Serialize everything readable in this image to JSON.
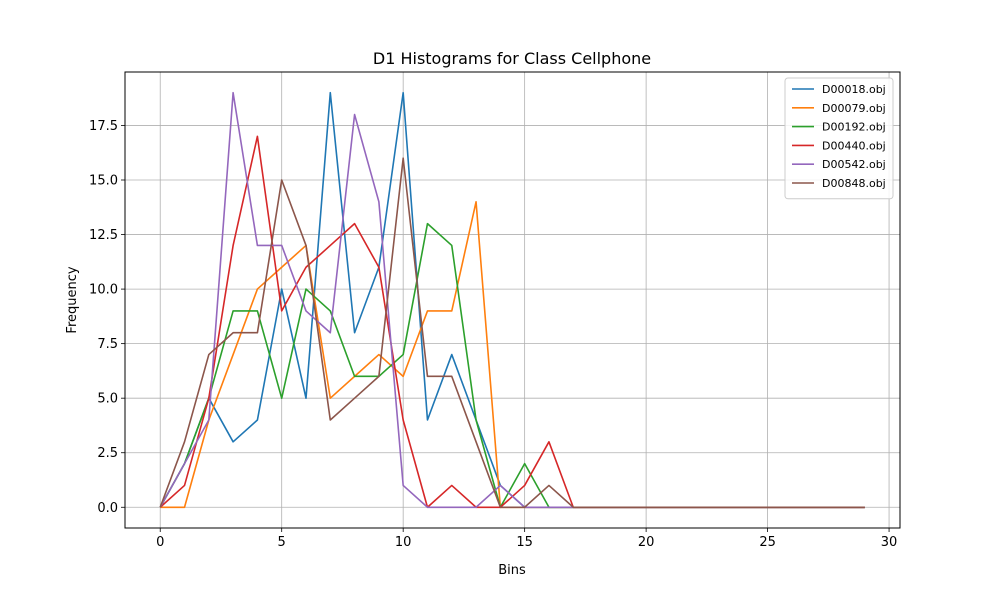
{
  "chart_data": {
    "type": "line",
    "title": "D1 Histograms for Class Cellphone",
    "xlabel": "Bins",
    "ylabel": "Frequency",
    "xlim": [
      -1.45,
      30.45
    ],
    "ylim": [
      -0.95,
      19.95
    ],
    "xticks": [
      0,
      5,
      10,
      15,
      20,
      25,
      30
    ],
    "yticks": [
      0.0,
      2.5,
      5.0,
      7.5,
      10.0,
      12.5,
      15.0,
      17.5
    ],
    "ytick_labels": [
      "0.0",
      "2.5",
      "5.0",
      "7.5",
      "10.0",
      "12.5",
      "15.0",
      "17.5"
    ],
    "grid": true,
    "legend_position": "top-right",
    "x": [
      0,
      1,
      2,
      3,
      4,
      5,
      6,
      7,
      8,
      9,
      10,
      11,
      12,
      13,
      14,
      15,
      16,
      17,
      18,
      19,
      20,
      21,
      22,
      23,
      24,
      25,
      26,
      27,
      28,
      29
    ],
    "series": [
      {
        "name": "D00018.obj",
        "color": "#1f77b4",
        "values": [
          0,
          2,
          5,
          3,
          4,
          10,
          5,
          19,
          8,
          11,
          19,
          4,
          7,
          4,
          1,
          0,
          0,
          0,
          0,
          0,
          0,
          0,
          0,
          0,
          0,
          0,
          0,
          0,
          0,
          0
        ]
      },
      {
        "name": "D00079.obj",
        "color": "#ff7f0e",
        "values": [
          0,
          0,
          4,
          7,
          10,
          11,
          12,
          5,
          6,
          7,
          6,
          9,
          9,
          14,
          0,
          0,
          0,
          0,
          0,
          0,
          0,
          0,
          0,
          0,
          0,
          0,
          0,
          0,
          0,
          0
        ]
      },
      {
        "name": "D00192.obj",
        "color": "#2ca02c",
        "values": [
          0,
          2,
          5,
          9,
          9,
          5,
          10,
          9,
          6,
          6,
          7,
          13,
          12,
          4,
          0,
          2,
          0,
          0,
          0,
          0,
          0,
          0,
          0,
          0,
          0,
          0,
          0,
          0,
          0,
          0
        ]
      },
      {
        "name": "D00440.obj",
        "color": "#d62728",
        "values": [
          0,
          1,
          5,
          12,
          17,
          9,
          11,
          12,
          13,
          11,
          4,
          0,
          1,
          0,
          0,
          1,
          3,
          0,
          0,
          0,
          0,
          0,
          0,
          0,
          0,
          0,
          0,
          0,
          0,
          0
        ]
      },
      {
        "name": "D00542.obj",
        "color": "#9467bd",
        "values": [
          0,
          2,
          4,
          19,
          12,
          12,
          9,
          8,
          18,
          14,
          1,
          0,
          0,
          0,
          1,
          0,
          0,
          0,
          0,
          0,
          0,
          0,
          0,
          0,
          0,
          0,
          0,
          0,
          0,
          0
        ]
      },
      {
        "name": "D00848.obj",
        "color": "#8c564b",
        "values": [
          0,
          3,
          7,
          8,
          8,
          15,
          12,
          4,
          5,
          6,
          16,
          6,
          6,
          3,
          0,
          0,
          1,
          0,
          0,
          0,
          0,
          0,
          0,
          0,
          0,
          0,
          0,
          0,
          0,
          0
        ]
      }
    ]
  }
}
